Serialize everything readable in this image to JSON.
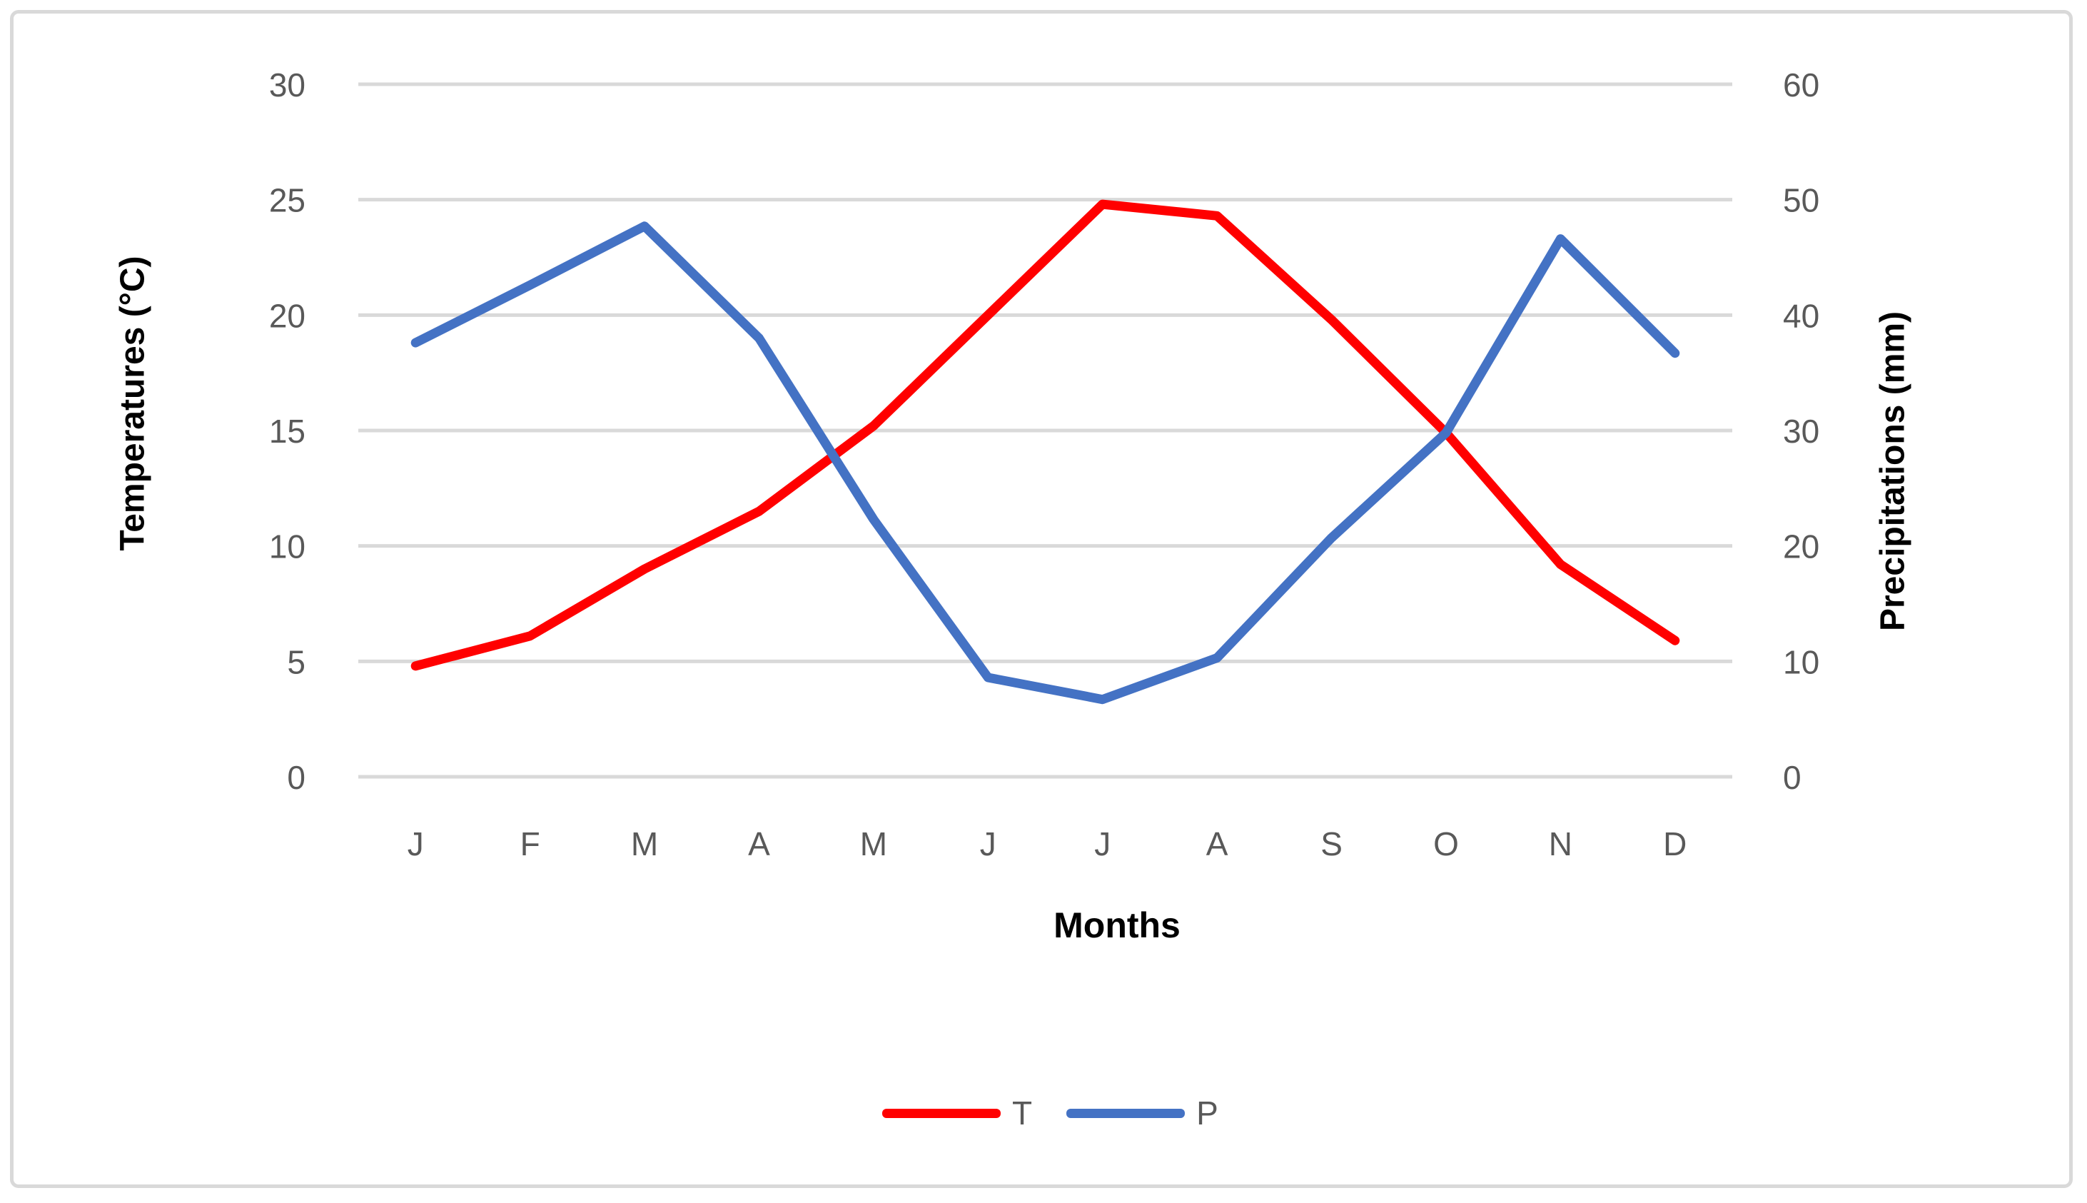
{
  "chart_data": {
    "type": "line",
    "categories": [
      "J",
      "F",
      "M",
      "A",
      "M",
      "J",
      "J",
      "A",
      "S",
      "O",
      "N",
      "D"
    ],
    "x_axis_title": "Months",
    "series": [
      {
        "name": "T",
        "axis": "left",
        "color": "#FF0000",
        "values": [
          4.8,
          6.1,
          9.0,
          11.5,
          15.2,
          20.0,
          24.8,
          24.3,
          19.8,
          14.9,
          9.2,
          5.9
        ]
      },
      {
        "name": "P",
        "axis": "right",
        "color": "#4472C4",
        "values": [
          37.6,
          42.6,
          47.7,
          38.0,
          22.3,
          8.6,
          6.7,
          10.3,
          20.7,
          29.8,
          46.6,
          36.7
        ]
      }
    ],
    "axes": {
      "left": {
        "title": "Temperatures (°C)",
        "min": 0,
        "max": 30,
        "ticks": [
          30,
          25,
          20,
          15,
          10,
          5,
          0
        ]
      },
      "right": {
        "title": "Precipitations (mm)",
        "min": 0,
        "max": 60,
        "ticks": [
          60,
          50,
          40,
          30,
          20,
          10,
          0
        ]
      }
    },
    "grid": true,
    "legend_position": "bottom"
  },
  "legend": {
    "items": [
      {
        "label": "T"
      },
      {
        "label": "P"
      }
    ]
  },
  "colors": {
    "background": "#FFFFFF",
    "grid": "#D9D9D9",
    "frame": "#D9D9D9",
    "tick_label": "#595959",
    "axis_title": "#000000",
    "temperature": "#FF0000",
    "precipitation": "#4472C4"
  }
}
